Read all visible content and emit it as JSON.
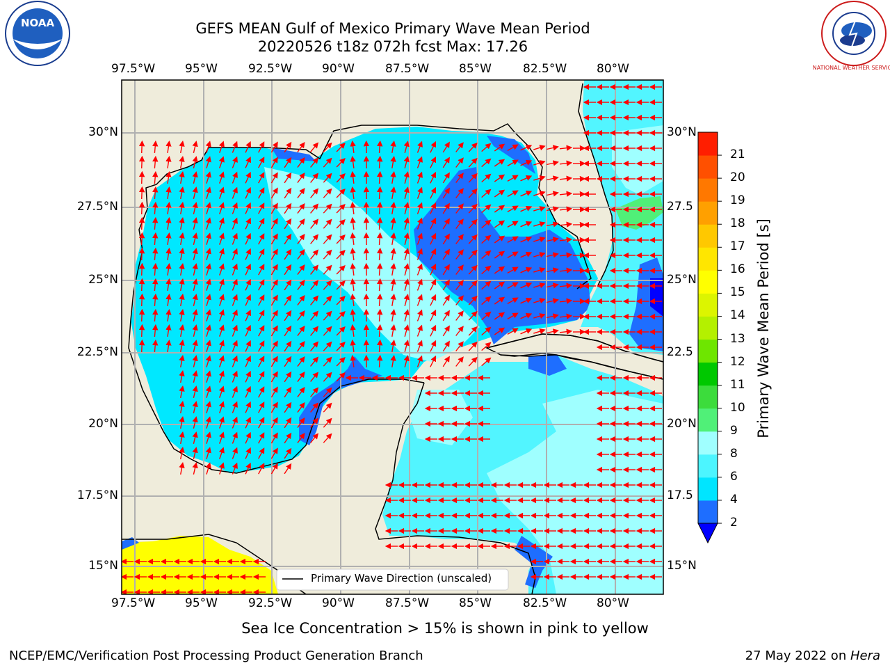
{
  "header": {
    "title_line1": "GEFS MEAN Gulf of Mexico Primary Wave Mean Period",
    "title_line2": "20220526 t18z 072h fcst   Max: 17.26"
  },
  "logos": {
    "left": "NOAA",
    "right": "NATIONAL WEATHER SERVICE"
  },
  "axes": {
    "lon_ticks": [
      "97.5°W",
      "95°W",
      "92.5°W",
      "90°W",
      "87.5°W",
      "85°W",
      "82.5°W",
      "80°W"
    ],
    "lat_ticks_left": [
      "30°N",
      "27.5°N",
      "25°N",
      "22.5°N",
      "20°N",
      "17.5°N",
      "15°N"
    ],
    "lat_ticks_right": [
      "30°N",
      "27.5",
      "25°N",
      "22.5",
      "20°N",
      "17.5",
      "15°N"
    ]
  },
  "legend": {
    "label": "Primary Wave Direction (unscaled)"
  },
  "colorbar": {
    "label": "Primary Wave Mean Period [s]",
    "ticks": [
      "2",
      "4",
      "6",
      "8",
      "9",
      "10",
      "11",
      "12",
      "13",
      "14",
      "15",
      "16",
      "17",
      "18",
      "19",
      "20",
      "21"
    ],
    "colors": [
      "#1e6eff",
      "#00e5ff",
      "#4cf5ff",
      "#a0ffff",
      "#50f078",
      "#3cdc3c",
      "#00c800",
      "#6ee600",
      "#b4f000",
      "#dcf500",
      "#ffff00",
      "#ffe600",
      "#ffc800",
      "#ffa000",
      "#ff7800",
      "#ff5000",
      "#ff1e00"
    ],
    "extend_color": "#0000ff"
  },
  "footer": {
    "note": "Sea Ice Concentration > 15% is shown in pink to yellow",
    "left": "NCEP/EMC/Verification Post Processing Product Generation Branch",
    "right_date": "27 May 2022 on ",
    "right_host": "Hera"
  }
}
